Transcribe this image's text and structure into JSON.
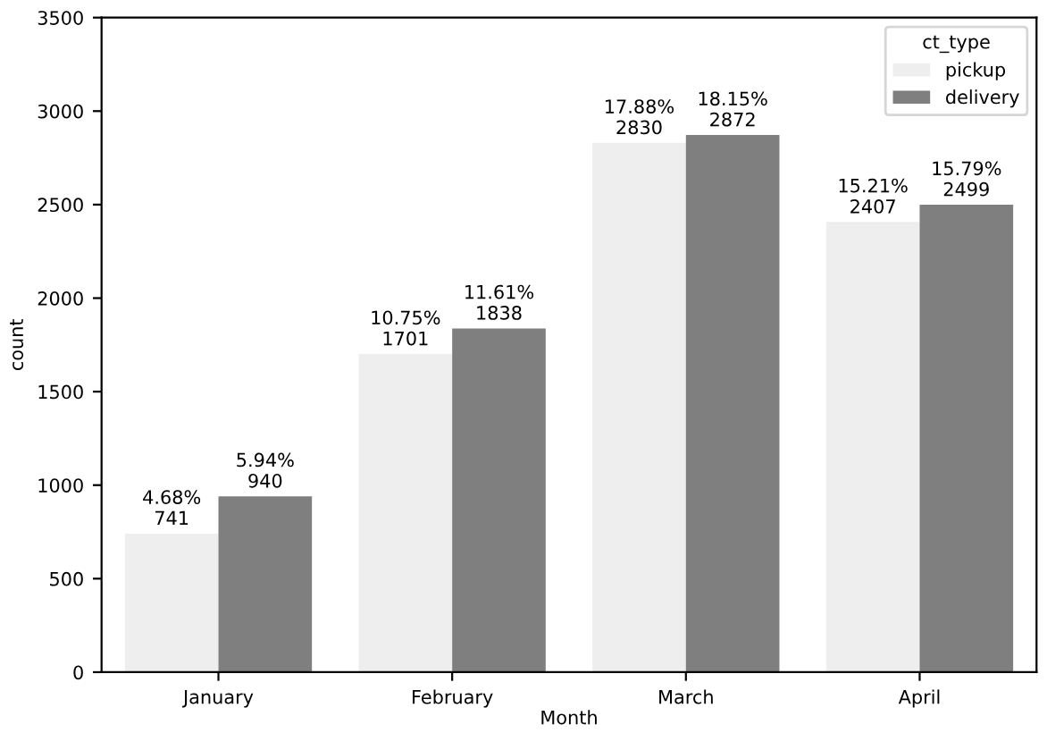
{
  "chart_data": {
    "type": "bar",
    "xlabel": "Month",
    "ylabel": "count",
    "legend_title": "ct_type",
    "legend": "top right",
    "grid": false,
    "categories": [
      "January",
      "February",
      "March",
      "April"
    ],
    "series": [
      {
        "name": "pickup",
        "color": "#eeeeee",
        "values": [
          741,
          1701,
          2830,
          2407
        ],
        "value_labels": [
          "4.68%\n741",
          "10.75%\n1701",
          "17.88%\n2830",
          "15.21%\n2407"
        ]
      },
      {
        "name": "delivery",
        "color": "#7f7f7f",
        "values": [
          940,
          1838,
          2872,
          2499
        ],
        "value_labels": [
          "5.94%\n940",
          "11.61%\n1838",
          "18.15%\n2872",
          "15.79%\n2499"
        ]
      }
    ],
    "ylim": [
      0,
      3500
    ],
    "yticks": [
      0,
      500,
      1000,
      1500,
      2000,
      2500,
      3000,
      3500
    ]
  }
}
